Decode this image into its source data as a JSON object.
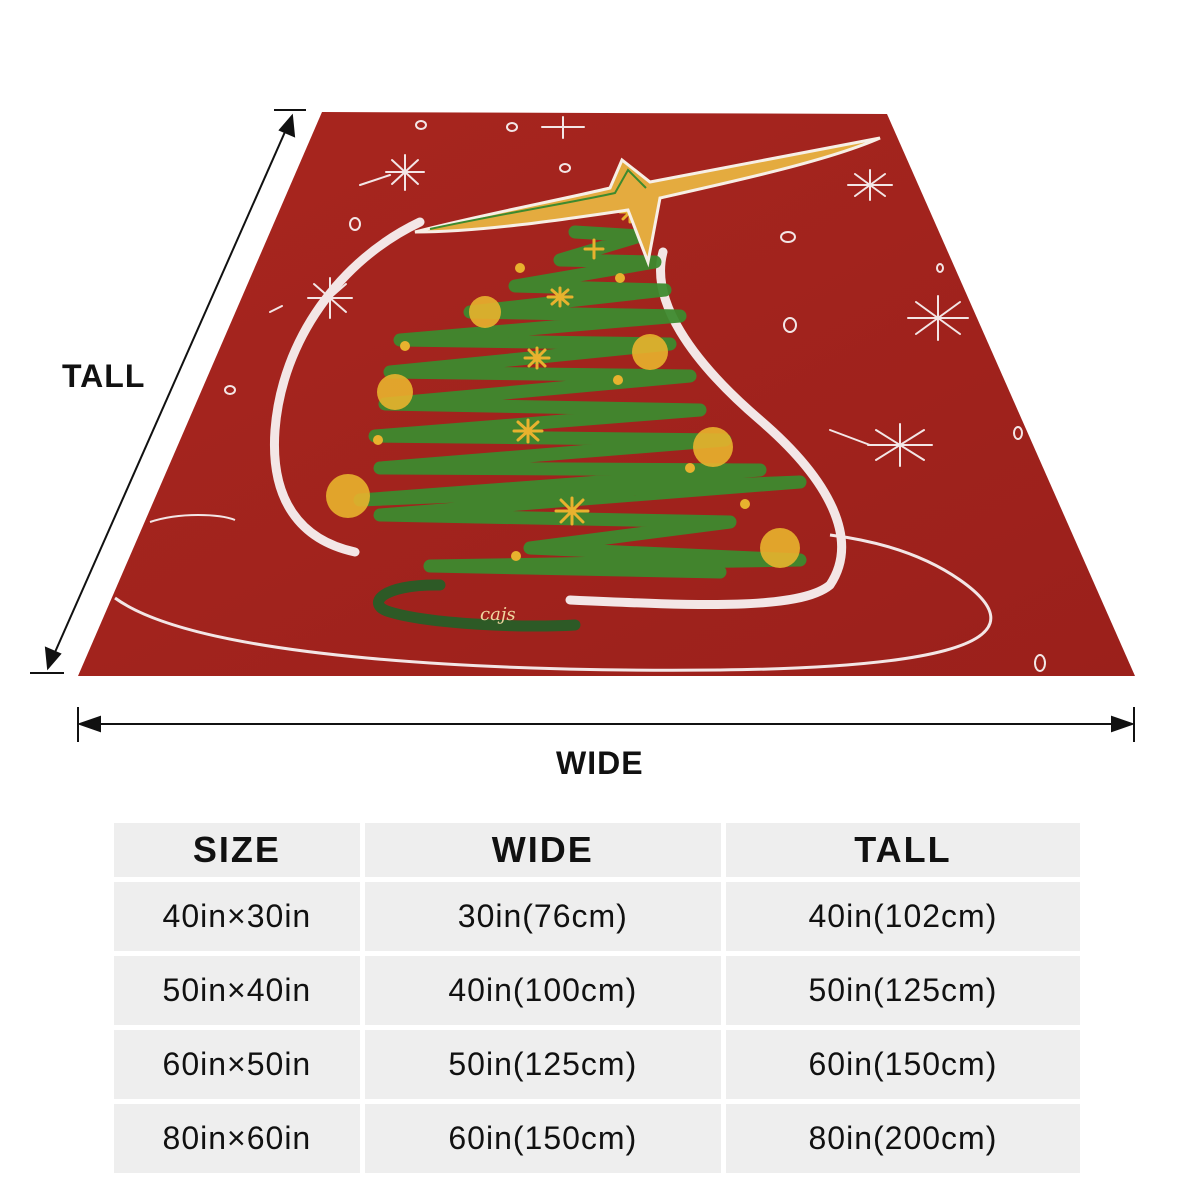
{
  "dimensions": {
    "tall_label": "TALL",
    "wide_label": "WIDE"
  },
  "artwork": {
    "description_icon": "christmas-tree-blanket",
    "colors": {
      "background": "#a3231e",
      "tree": "#3d8a2e",
      "ornament": "#e8b22e",
      "star": "#e4ab3f",
      "outline": "#f3e6e6"
    }
  },
  "size_table": {
    "headers": [
      "SIZE",
      "WIDE",
      "TALL"
    ],
    "rows": [
      [
        "40in×30in",
        "30in(76cm)",
        "40in(102cm)"
      ],
      [
        "50in×40in",
        "40in(100cm)",
        "50in(125cm)"
      ],
      [
        "60in×50in",
        "50in(125cm)",
        "60in(150cm)"
      ],
      [
        "80in×60in",
        "60in(150cm)",
        "80in(200cm)"
      ]
    ]
  }
}
